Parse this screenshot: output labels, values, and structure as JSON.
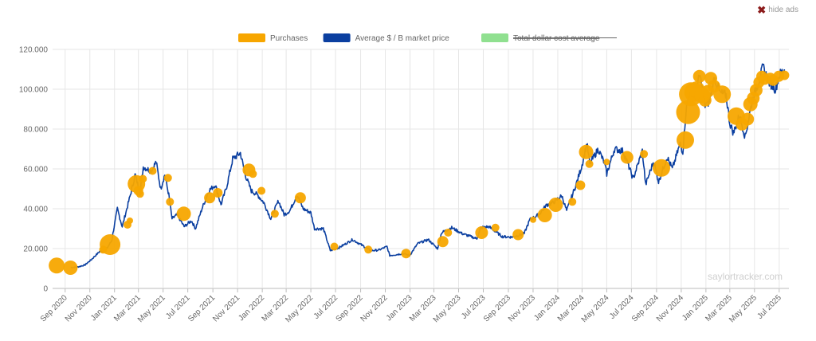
{
  "ads": {
    "hide_label": "hide ads",
    "close_icon": "x-icon"
  },
  "watermark": "saylortracker.com",
  "chart_data": {
    "type": "line",
    "title": "",
    "xlabel": "",
    "ylabel": "",
    "grid": true,
    "legend_position": "top",
    "xlim": [
      "2020-08-01",
      "2025-07-25"
    ],
    "ylim": [
      0,
      120000
    ],
    "y_ticks": [
      0,
      20000,
      40000,
      60000,
      80000,
      100000,
      120000
    ],
    "y_tick_labels": [
      "0",
      "20.000",
      "40.000",
      "60.000",
      "80.000",
      "100.000",
      "120.000"
    ],
    "x_ticks": [
      "2020-09-01",
      "2020-11-01",
      "2021-01-01",
      "2021-03-01",
      "2021-05-01",
      "2021-07-01",
      "2021-09-01",
      "2021-11-01",
      "2022-01-01",
      "2022-03-01",
      "2022-05-01",
      "2022-07-01",
      "2022-09-01",
      "2022-11-01",
      "2023-01-01",
      "2023-03-01",
      "2023-05-01",
      "2023-07-01",
      "2023-09-01",
      "2023-11-01",
      "2024-01-01",
      "2024-03-01",
      "2024-05-01",
      "2024-07-01",
      "2024-09-01",
      "2024-11-01",
      "2025-01-01",
      "2025-03-01",
      "2025-05-01",
      "2025-07-01"
    ],
    "x_tick_labels": [
      "Sep 2020",
      "Nov 2020",
      "Jan 2021",
      "Mar 2021",
      "May 2021",
      "Jul 2021",
      "Sep 2021",
      "Nov 2021",
      "Jan 2022",
      "Mar 2022",
      "May 2022",
      "Jul 2022",
      "Sep 2022",
      "Nov 2022",
      "Jan 2023",
      "Mar 2023",
      "May 2023",
      "Jul 2023",
      "Sep 2023",
      "Nov 2023",
      "Jan 2024",
      "Mar 2024",
      "May 2024",
      "Jul 2024",
      "Sep 2024",
      "Nov 2024",
      "Jan 2025",
      "Mar 2025",
      "May 2025",
      "Jul 2025"
    ],
    "legend": [
      {
        "label": "Purchases",
        "color": "#f7a600",
        "strikethrough": false
      },
      {
        "label": "Average $ / B market price",
        "color": "#0b3fa0",
        "strikethrough": false
      },
      {
        "label": "Total dollar cost average",
        "color": "#90e090",
        "strikethrough": true
      }
    ],
    "series": [
      {
        "name": "Average $ / B market price",
        "color": "#0b3fa0",
        "points": [
          [
            "2020-09-15",
            10500
          ],
          [
            "2020-10-01",
            10700
          ],
          [
            "2020-10-20",
            11800
          ],
          [
            "2020-11-05",
            14500
          ],
          [
            "2020-11-25",
            18500
          ],
          [
            "2020-12-10",
            19000
          ],
          [
            "2020-12-25",
            24000
          ],
          [
            "2021-01-08",
            40000
          ],
          [
            "2021-01-20",
            31000
          ],
          [
            "2021-02-08",
            46000
          ],
          [
            "2021-02-21",
            57000
          ],
          [
            "2021-03-05",
            48000
          ],
          [
            "2021-03-13",
            61000
          ],
          [
            "2021-04-01",
            59000
          ],
          [
            "2021-04-14",
            63500
          ],
          [
            "2021-04-25",
            50000
          ],
          [
            "2021-05-05",
            57000
          ],
          [
            "2021-05-15",
            47000
          ],
          [
            "2021-05-23",
            35000
          ],
          [
            "2021-06-05",
            37000
          ],
          [
            "2021-06-22",
            31000
          ],
          [
            "2021-07-10",
            34000
          ],
          [
            "2021-07-20",
            30000
          ],
          [
            "2021-08-05",
            40000
          ],
          [
            "2021-08-22",
            49000
          ],
          [
            "2021-09-07",
            52000
          ],
          [
            "2021-09-21",
            42000
          ],
          [
            "2021-10-05",
            51000
          ],
          [
            "2021-10-20",
            65000
          ],
          [
            "2021-11-08",
            68000
          ],
          [
            "2021-11-20",
            57000
          ],
          [
            "2021-12-05",
            49000
          ],
          [
            "2021-12-20",
            47000
          ],
          [
            "2022-01-05",
            43000
          ],
          [
            "2022-01-22",
            35000
          ],
          [
            "2022-02-10",
            44000
          ],
          [
            "2022-02-24",
            37000
          ],
          [
            "2022-03-10",
            39000
          ],
          [
            "2022-03-28",
            47000
          ],
          [
            "2022-04-12",
            40000
          ],
          [
            "2022-05-01",
            38000
          ],
          [
            "2022-05-10",
            30000
          ],
          [
            "2022-06-01",
            30000
          ],
          [
            "2022-06-18",
            19000
          ],
          [
            "2022-07-10",
            20500
          ],
          [
            "2022-08-12",
            24500
          ],
          [
            "2022-09-10",
            21000
          ],
          [
            "2022-09-25",
            19000
          ],
          [
            "2022-10-15",
            19200
          ],
          [
            "2022-11-05",
            21000
          ],
          [
            "2022-11-12",
            16500
          ],
          [
            "2022-12-15",
            17500
          ],
          [
            "2022-12-31",
            16500
          ],
          [
            "2023-01-20",
            22500
          ],
          [
            "2023-02-15",
            24500
          ],
          [
            "2023-03-10",
            20000
          ],
          [
            "2023-03-20",
            28000
          ],
          [
            "2023-04-14",
            30500
          ],
          [
            "2023-05-10",
            27500
          ],
          [
            "2023-06-15",
            25000
          ],
          [
            "2023-06-25",
            30500
          ],
          [
            "2023-07-15",
            31000
          ],
          [
            "2023-08-17",
            26000
          ],
          [
            "2023-09-10",
            25800
          ],
          [
            "2023-10-10",
            27500
          ],
          [
            "2023-10-24",
            34500
          ],
          [
            "2023-11-15",
            37000
          ],
          [
            "2023-12-05",
            42000
          ],
          [
            "2023-12-20",
            43000
          ],
          [
            "2024-01-11",
            46500
          ],
          [
            "2024-01-23",
            39000
          ],
          [
            "2024-02-15",
            52000
          ],
          [
            "2024-03-01",
            62000
          ],
          [
            "2024-03-13",
            73000
          ],
          [
            "2024-03-20",
            62500
          ],
          [
            "2024-04-10",
            70000
          ],
          [
            "2024-04-25",
            63000
          ],
          [
            "2024-05-01",
            57500
          ],
          [
            "2024-05-20",
            70000
          ],
          [
            "2024-06-10",
            69000
          ],
          [
            "2024-06-25",
            61000
          ],
          [
            "2024-07-05",
            55000
          ],
          [
            "2024-07-28",
            69000
          ],
          [
            "2024-08-05",
            52000
          ],
          [
            "2024-08-25",
            64000
          ],
          [
            "2024-09-06",
            53500
          ],
          [
            "2024-09-27",
            66000
          ],
          [
            "2024-10-10",
            60000
          ],
          [
            "2024-10-29",
            72500
          ],
          [
            "2024-11-05",
            68500
          ],
          [
            "2024-11-13",
            90000
          ],
          [
            "2024-11-22",
            99000
          ],
          [
            "2024-12-05",
            97000
          ],
          [
            "2024-12-17",
            107000
          ],
          [
            "2024-12-30",
            92000
          ],
          [
            "2025-01-10",
            94000
          ],
          [
            "2025-01-22",
            106000
          ],
          [
            "2025-02-05",
            98000
          ],
          [
            "2025-02-20",
            97000
          ],
          [
            "2025-03-01",
            83000
          ],
          [
            "2025-03-10",
            78000
          ],
          [
            "2025-03-25",
            87000
          ],
          [
            "2025-04-08",
            76000
          ],
          [
            "2025-04-25",
            94000
          ],
          [
            "2025-05-10",
            103000
          ],
          [
            "2025-05-22",
            111000
          ],
          [
            "2025-06-05",
            104000
          ],
          [
            "2025-06-22",
            100000
          ],
          [
            "2025-07-01",
            107000
          ],
          [
            "2025-07-14",
            110000
          ]
        ]
      },
      {
        "name": "Purchases",
        "color": "#f7a600",
        "points": [
          [
            "2020-08-11",
            11500,
            10
          ],
          [
            "2020-09-14",
            10400,
            9
          ],
          [
            "2020-12-04",
            19500,
            5
          ],
          [
            "2020-12-21",
            22000,
            13
          ],
          [
            "2021-02-02",
            32000,
            5
          ],
          [
            "2021-02-08",
            34000,
            4
          ],
          [
            "2021-02-24",
            52500,
            11
          ],
          [
            "2021-03-01",
            49000,
            6
          ],
          [
            "2021-03-05",
            47500,
            5
          ],
          [
            "2021-03-12",
            55000,
            5
          ],
          [
            "2021-04-05",
            59000,
            5
          ],
          [
            "2021-05-13",
            55500,
            5
          ],
          [
            "2021-05-18",
            43500,
            5
          ],
          [
            "2021-06-21",
            37500,
            9
          ],
          [
            "2021-08-24",
            45500,
            7
          ],
          [
            "2021-09-13",
            48000,
            6
          ],
          [
            "2021-11-29",
            59500,
            8
          ],
          [
            "2021-12-09",
            57500,
            5
          ],
          [
            "2021-12-30",
            49000,
            5
          ],
          [
            "2022-02-01",
            37500,
            5
          ],
          [
            "2022-04-05",
            45500,
            7
          ],
          [
            "2022-06-28",
            21000,
            5
          ],
          [
            "2022-09-20",
            19500,
            5
          ],
          [
            "2022-12-22",
            17500,
            6
          ],
          [
            "2023-03-23",
            23500,
            7
          ],
          [
            "2023-04-05",
            28000,
            5
          ],
          [
            "2023-06-27",
            28000,
            8
          ],
          [
            "2023-07-31",
            30500,
            5
          ],
          [
            "2023-09-25",
            27000,
            7
          ],
          [
            "2023-11-01",
            34500,
            4
          ],
          [
            "2023-11-30",
            36800,
            9
          ],
          [
            "2023-12-27",
            42000,
            9
          ],
          [
            "2024-02-06",
            43500,
            5
          ],
          [
            "2024-02-26",
            51800,
            6
          ],
          [
            "2024-03-11",
            68500,
            9
          ],
          [
            "2024-03-19",
            62500,
            5
          ],
          [
            "2024-05-01",
            63500,
            4
          ],
          [
            "2024-06-20",
            65800,
            8
          ],
          [
            "2024-08-01",
            67500,
            5
          ],
          [
            "2024-09-13",
            60500,
            11
          ],
          [
            "2024-11-11",
            74500,
            11
          ],
          [
            "2024-11-18",
            88500,
            15
          ],
          [
            "2024-11-25",
            97500,
            15
          ],
          [
            "2024-12-02",
            98500,
            12
          ],
          [
            "2024-12-09",
            100000,
            10
          ],
          [
            "2024-12-16",
            106500,
            8
          ],
          [
            "2024-12-23",
            97000,
            10
          ],
          [
            "2024-12-30",
            94500,
            8
          ],
          [
            "2025-01-06",
            99000,
            8
          ],
          [
            "2025-01-13",
            105500,
            8
          ],
          [
            "2025-01-21",
            101500,
            8
          ],
          [
            "2025-02-10",
            97500,
            11
          ],
          [
            "2025-03-17",
            86500,
            11
          ],
          [
            "2025-03-31",
            82500,
            8
          ],
          [
            "2025-04-14",
            85000,
            8
          ],
          [
            "2025-04-21",
            92500,
            9
          ],
          [
            "2025-04-28",
            95500,
            8
          ],
          [
            "2025-05-05",
            99500,
            8
          ],
          [
            "2025-05-12",
            103500,
            7
          ],
          [
            "2025-05-19",
            106500,
            7
          ],
          [
            "2025-05-26",
            105000,
            7
          ],
          [
            "2025-06-09",
            105500,
            7
          ],
          [
            "2025-06-16",
            104500,
            7
          ],
          [
            "2025-06-30",
            106500,
            7
          ],
          [
            "2025-07-14",
            107000,
            6
          ]
        ]
      }
    ]
  }
}
